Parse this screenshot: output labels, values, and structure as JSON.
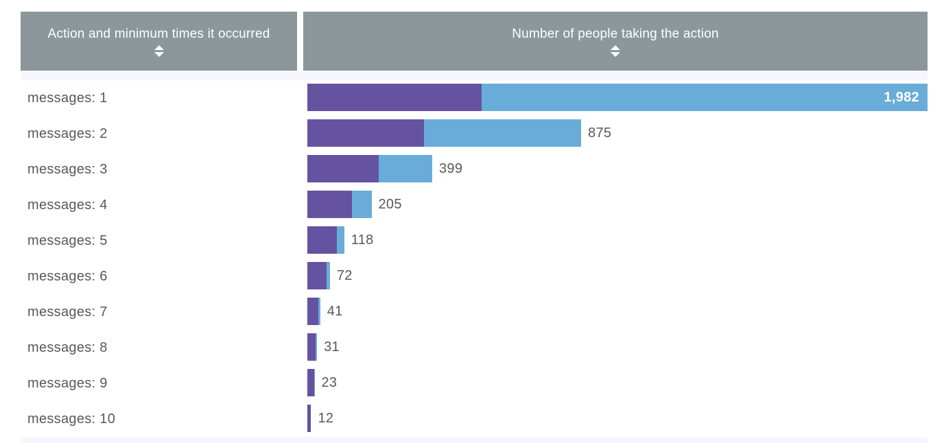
{
  "colors": {
    "header_bg": "#8c979b",
    "header_text": "#ffffff",
    "bar_purple": "#6552a1",
    "bar_blue": "#69acd9",
    "label_text": "#58585b",
    "edge_strip_bg": "#f6f7fc",
    "page_bg": "#ffffff"
  },
  "table": {
    "columns": [
      {
        "label": "Action and minimum times it occurred",
        "sortable": true
      },
      {
        "label": "Number of people taking the action",
        "sortable": true
      }
    ],
    "rows": [
      {
        "label": "messages: 1",
        "value": 1982,
        "value_display": "1,982",
        "purple_value": 556,
        "value_inside_bar": true
      },
      {
        "label": "messages: 2",
        "value": 875,
        "value_display": "875",
        "purple_value": 373,
        "value_inside_bar": false
      },
      {
        "label": "messages: 3",
        "value": 399,
        "value_display": "399",
        "purple_value": 229,
        "value_inside_bar": false
      },
      {
        "label": "messages: 4",
        "value": 205,
        "value_display": "205",
        "purple_value": 142,
        "value_inside_bar": false
      },
      {
        "label": "messages: 5",
        "value": 118,
        "value_display": "118",
        "purple_value": 94,
        "value_inside_bar": false
      },
      {
        "label": "messages: 6",
        "value": 72,
        "value_display": "72",
        "purple_value": 61,
        "value_inside_bar": false
      },
      {
        "label": "messages: 7",
        "value": 41,
        "value_display": "41",
        "purple_value": 35,
        "value_inside_bar": false
      },
      {
        "label": "messages: 8",
        "value": 31,
        "value_display": "31",
        "purple_value": 26,
        "value_inside_bar": false
      },
      {
        "label": "messages: 9",
        "value": 23,
        "value_display": "23",
        "purple_value": 22,
        "value_inside_bar": false
      },
      {
        "label": "messages: 10",
        "value": 12,
        "value_display": "12",
        "purple_value": 12,
        "value_inside_bar": false
      }
    ]
  },
  "chart_data": {
    "type": "bar",
    "orientation": "horizontal",
    "stacked": true,
    "categories": [
      "messages: 1",
      "messages: 2",
      "messages: 3",
      "messages: 4",
      "messages: 5",
      "messages: 6",
      "messages: 7",
      "messages: 8",
      "messages: 9",
      "messages: 10"
    ],
    "series": [
      {
        "name": "purple-segment",
        "color": "#6552a1",
        "values": [
          556,
          373,
          229,
          142,
          94,
          61,
          35,
          26,
          22,
          12
        ]
      },
      {
        "name": "blue-segment",
        "color": "#69acd9",
        "values": [
          1426,
          502,
          170,
          63,
          24,
          11,
          6,
          5,
          1,
          0
        ]
      }
    ],
    "totals": [
      1982,
      875,
      399,
      205,
      118,
      72,
      41,
      31,
      23,
      12
    ],
    "total_labels": [
      "1,982",
      "875",
      "399",
      "205",
      "118",
      "72",
      "41",
      "31",
      "23",
      "12"
    ],
    "title": "Number of people taking the action",
    "xlabel": "",
    "ylabel": "Action and minimum times it occurred",
    "xlim": [
      0,
      1982
    ],
    "grid": false,
    "legend": "none",
    "note": "purple/blue segment split estimated from pixel widths; totals are labeled values"
  }
}
